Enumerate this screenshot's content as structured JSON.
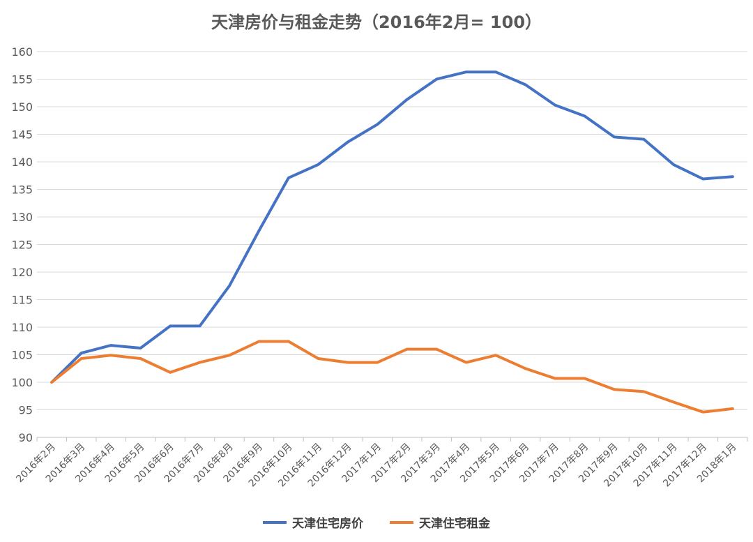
{
  "chart_data": {
    "type": "line",
    "title": "天津房价与租金走势（2016年2月= 100）",
    "categories": [
      "2016年2月",
      "2016年3月",
      "2016年4月",
      "2016年5月",
      "2016年6月",
      "2016年7月",
      "2016年8月",
      "2016年9月",
      "2016年10月",
      "2016年11月",
      "2016年12月",
      "2017年1月",
      "2017年2月",
      "2017年3月",
      "2017年4月",
      "2017年5月",
      "2017年6月",
      "2017年7月",
      "2017年8月",
      "2017年9月",
      "2017年10月",
      "2017年11月",
      "2017年12月",
      "2018年1月"
    ],
    "series": [
      {
        "name": "天津住宅房价",
        "color": "#4472C4",
        "values": [
          100,
          105.3,
          106.7,
          106.2,
          110.2,
          110.2,
          117.5,
          127.5,
          137.1,
          139.5,
          143.6,
          146.8,
          151.3,
          155.0,
          156.3,
          156.3,
          154.0,
          150.3,
          148.3,
          144.5,
          144.1,
          139.5,
          136.9,
          137.3
        ]
      },
      {
        "name": "天津住宅租金",
        "color": "#ED7D31",
        "values": [
          100,
          104.3,
          104.9,
          104.3,
          101.8,
          103.6,
          104.9,
          107.4,
          107.4,
          104.3,
          103.6,
          103.6,
          106.0,
          106.0,
          103.6,
          104.9,
          102.5,
          100.7,
          100.7,
          98.7,
          98.3,
          96.4,
          94.6,
          95.2
        ]
      }
    ],
    "ylim": [
      90,
      160
    ],
    "yticks": [
      "90",
      "95",
      "100",
      "105",
      "110",
      "115",
      "120",
      "125",
      "130",
      "135",
      "140",
      "145",
      "150",
      "155",
      "160"
    ],
    "grid": true,
    "legend": "bottom"
  }
}
